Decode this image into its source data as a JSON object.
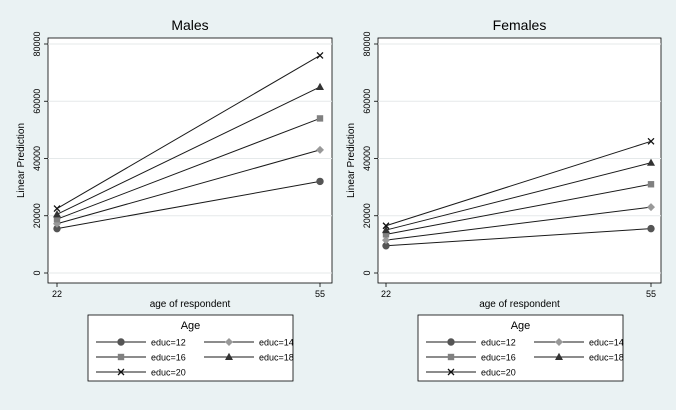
{
  "chart_data": [
    {
      "type": "line",
      "title": "Males",
      "xlabel": "age of respondent",
      "ylabel": "Linear Prediction",
      "x": [
        22,
        55
      ],
      "x_ticks": [
        "22",
        "55"
      ],
      "ylim": [
        0,
        80000
      ],
      "y_ticks": [
        "0",
        "20000",
        "40000",
        "60000",
        "80000"
      ],
      "grid": true,
      "series": [
        {
          "name": "educ=12",
          "marker": "circle",
          "values": [
            15500,
            32000
          ]
        },
        {
          "name": "educ=14",
          "marker": "diamond",
          "values": [
            17200,
            43000
          ]
        },
        {
          "name": "educ=16",
          "marker": "square",
          "values": [
            18800,
            54000
          ]
        },
        {
          "name": "educ=18",
          "marker": "triangle",
          "values": [
            20500,
            65000
          ]
        },
        {
          "name": "educ=20",
          "marker": "x",
          "values": [
            22500,
            76000
          ]
        }
      ],
      "legend": {
        "title": "Age",
        "placement": "bottom"
      }
    },
    {
      "type": "line",
      "title": "Females",
      "xlabel": "age of respondent",
      "ylabel": "Linear Prediction",
      "x": [
        22,
        55
      ],
      "x_ticks": [
        "22",
        "55"
      ],
      "ylim": [
        0,
        80000
      ],
      "y_ticks": [
        "0",
        "20000",
        "40000",
        "60000",
        "80000"
      ],
      "grid": true,
      "series": [
        {
          "name": "educ=12",
          "marker": "circle",
          "values": [
            9500,
            15500
          ]
        },
        {
          "name": "educ=14",
          "marker": "diamond",
          "values": [
            11500,
            23000
          ]
        },
        {
          "name": "educ=16",
          "marker": "square",
          "values": [
            13500,
            31000
          ]
        },
        {
          "name": "educ=18",
          "marker": "triangle",
          "values": [
            15000,
            38500
          ]
        },
        {
          "name": "educ=20",
          "marker": "x",
          "values": [
            16500,
            46000
          ]
        }
      ],
      "legend": {
        "title": "Age",
        "placement": "bottom"
      }
    }
  ],
  "colors": {
    "background": "#eaf2f3",
    "plot_bg": "#ffffff",
    "grid": "#e5e9ea",
    "line": "#1a1a1a",
    "circle": "#555555",
    "diamond": "#999999",
    "square": "#808080",
    "triangle": "#333333",
    "x": "#111111"
  }
}
